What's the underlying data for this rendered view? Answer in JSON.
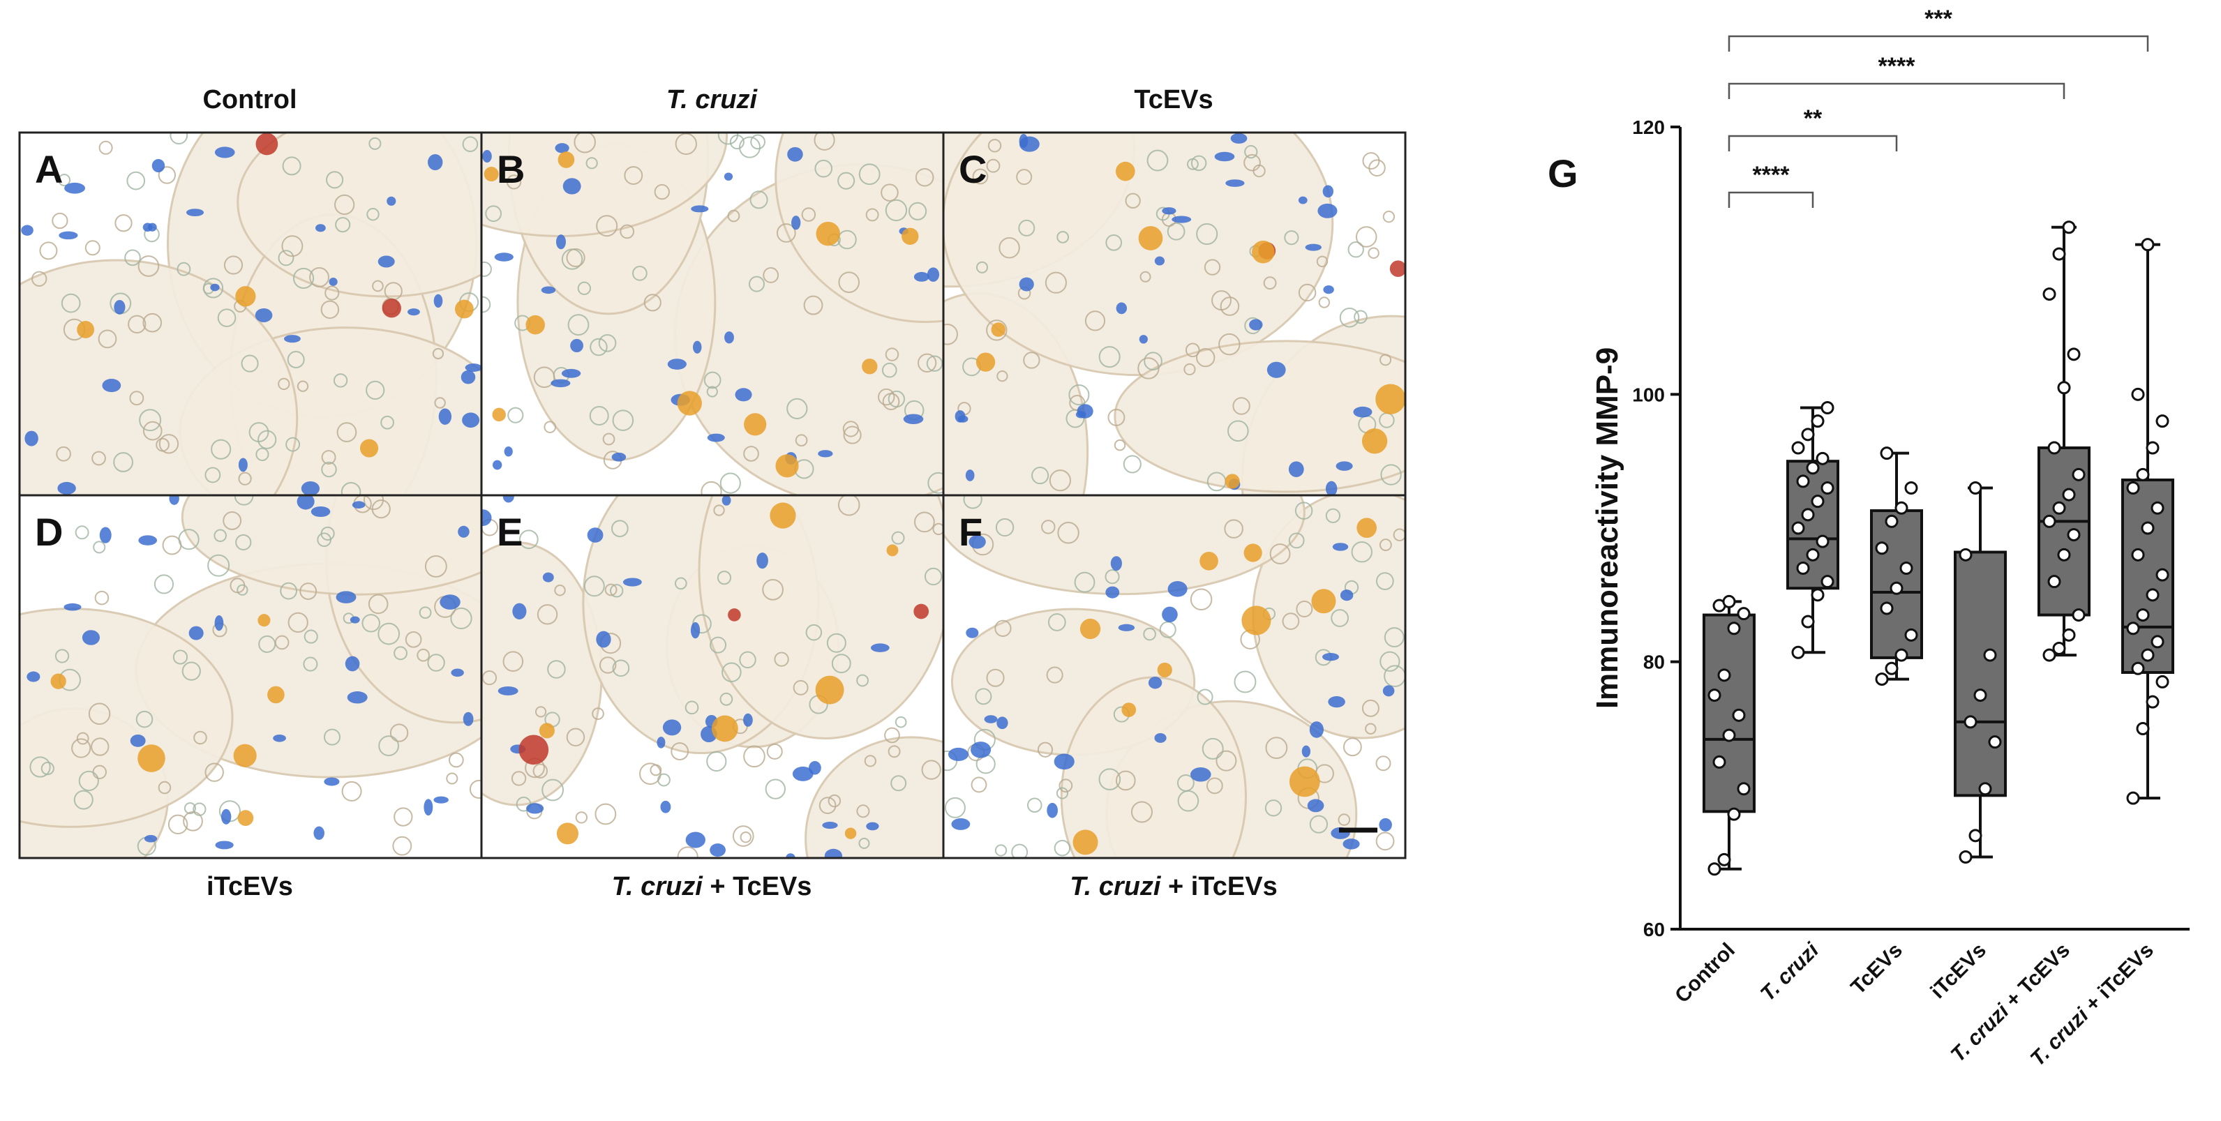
{
  "figure": {
    "panels": [
      {
        "letter": "A",
        "caption": {
          "italic": "",
          "plain": "Control"
        }
      },
      {
        "letter": "B",
        "caption": {
          "italic": "T. cruzi",
          "plain": ""
        }
      },
      {
        "letter": "C",
        "caption": {
          "italic": "",
          "plain": "TcEVs"
        }
      },
      {
        "letter": "D",
        "caption": {
          "italic": "",
          "plain": "iTcEVs"
        }
      },
      {
        "letter": "E",
        "caption": {
          "italic": "T. cruzi",
          "plain": " + TcEVs"
        }
      },
      {
        "letter": "F",
        "caption": {
          "italic": "T. cruzi",
          "plain": " + iTcEVs"
        }
      }
    ],
    "stain_colors": {
      "nuclei": "#3d6fd0",
      "immuno": "#e8a02a",
      "red": "#c0392b",
      "tissue": "#f3ecdf"
    }
  },
  "chart_data": {
    "type": "box",
    "panel_letter": "G",
    "ylabel": "Immunoreactivity MMP-9",
    "ylim": [
      60,
      120
    ],
    "yticks": [
      "60",
      "80",
      "100",
      "120"
    ],
    "box_color": "#6e6e6e",
    "groups": [
      {
        "label_italic": "",
        "label_plain": "Control",
        "min": 64.5,
        "q1": 68.8,
        "median": 74.2,
        "q3": 83.5,
        "max": 84.5,
        "points": [
          64.5,
          65.2,
          68.6,
          70.5,
          72.5,
          74.5,
          76.0,
          77.5,
          79.0,
          82.5,
          83.6,
          84.2,
          84.5
        ]
      },
      {
        "label_italic": "T. cruzi",
        "label_plain": "",
        "min": 80.7,
        "q1": 85.5,
        "median": 89.2,
        "q3": 95.0,
        "max": 99.0,
        "points": [
          80.7,
          83.0,
          85.0,
          86.0,
          87.0,
          88.0,
          89.0,
          90.0,
          91.0,
          92.0,
          93.0,
          93.5,
          94.5,
          95.2,
          96.0,
          97.0,
          98.0,
          99.0
        ]
      },
      {
        "label_italic": "",
        "label_plain": "TcEVs",
        "min": 78.7,
        "q1": 80.3,
        "median": 85.2,
        "q3": 91.3,
        "max": 95.6,
        "points": [
          78.7,
          79.5,
          80.5,
          82.0,
          84.0,
          85.5,
          87.0,
          88.5,
          90.5,
          91.5,
          93.0,
          95.6
        ]
      },
      {
        "label_italic": "",
        "label_plain": "iTcEVs",
        "min": 65.4,
        "q1": 70.0,
        "median": 75.5,
        "q3": 88.2,
        "max": 93.0,
        "points": [
          65.4,
          67.0,
          70.5,
          74.0,
          75.5,
          77.5,
          80.5,
          88.0,
          93.0
        ]
      },
      {
        "label_italic": "T. cruzi",
        "label_plain": " + TcEVs",
        "min": 80.5,
        "q1": 83.5,
        "median": 90.5,
        "q3": 96.0,
        "max": 112.5,
        "points": [
          80.5,
          81.0,
          82.0,
          83.5,
          86.0,
          88.0,
          89.5,
          90.5,
          91.5,
          92.5,
          94.0,
          96.0,
          100.5,
          103.0,
          107.5,
          110.5,
          112.5
        ]
      },
      {
        "label_italic": "T. cruzi",
        "label_plain": " + iTcEVs",
        "min": 69.8,
        "q1": 79.2,
        "median": 82.6,
        "q3": 93.6,
        "max": 111.2,
        "points": [
          69.8,
          75.0,
          77.0,
          78.5,
          79.5,
          80.5,
          81.5,
          82.5,
          83.5,
          85.0,
          86.5,
          88.0,
          90.0,
          91.5,
          93.0,
          94.0,
          96.0,
          98.0,
          100.0,
          111.2
        ]
      }
    ],
    "significance": [
      {
        "from": 0,
        "to": 1,
        "label": "****"
      },
      {
        "from": 0,
        "to": 2,
        "label": "**"
      },
      {
        "from": 0,
        "to": 4,
        "label": "****"
      },
      {
        "from": 0,
        "to": 5,
        "label": "***"
      }
    ]
  }
}
